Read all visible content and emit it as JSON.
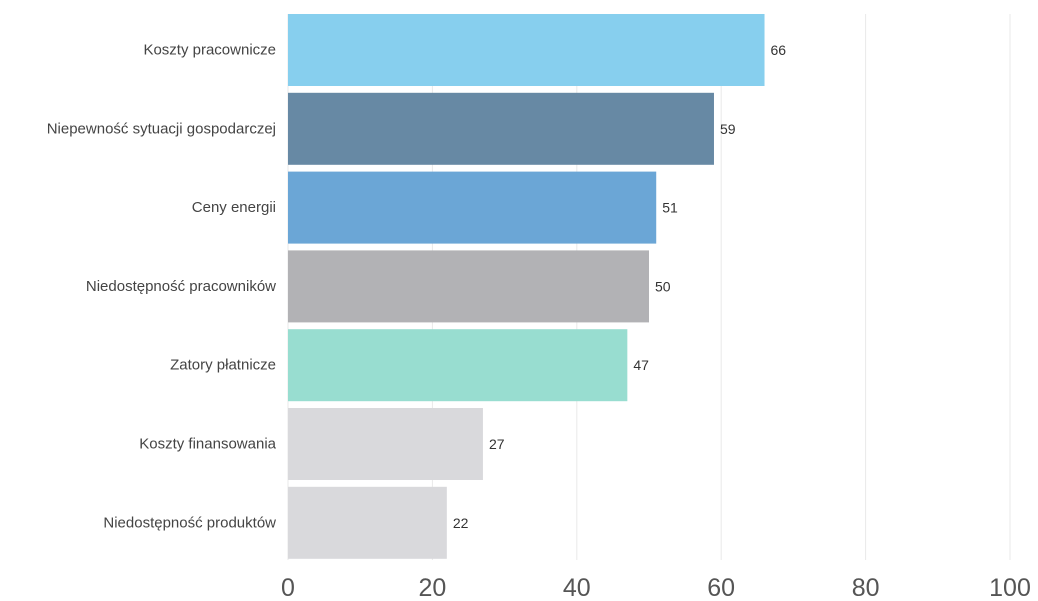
{
  "chart_data": {
    "type": "bar",
    "orientation": "horizontal",
    "categories": [
      "Koszty pracownicze",
      "Niepewność sytuacji gospodarczej",
      "Ceny energii",
      "Niedostępność pracowników",
      "Zatory płatnicze",
      "Koszty finansowania",
      "Niedostępność produktów"
    ],
    "values": [
      66,
      59,
      51,
      50,
      47,
      27,
      22
    ],
    "value_labels": [
      "66",
      "59",
      "51",
      "50",
      "47",
      "27",
      "22"
    ],
    "colors": [
      "#87cfee",
      "#6789a4",
      "#6ba6d6",
      "#b2b2b5",
      "#98ddd0",
      "#d9d9dc",
      "#d9d9dc"
    ],
    "xlim": [
      0,
      100
    ],
    "xticks": [
      0,
      20,
      40,
      60,
      80,
      100
    ],
    "xtick_labels": [
      "0",
      "20",
      "40",
      "60",
      "80",
      "100"
    ],
    "grid": true,
    "title": "",
    "xlabel": "",
    "ylabel": ""
  }
}
